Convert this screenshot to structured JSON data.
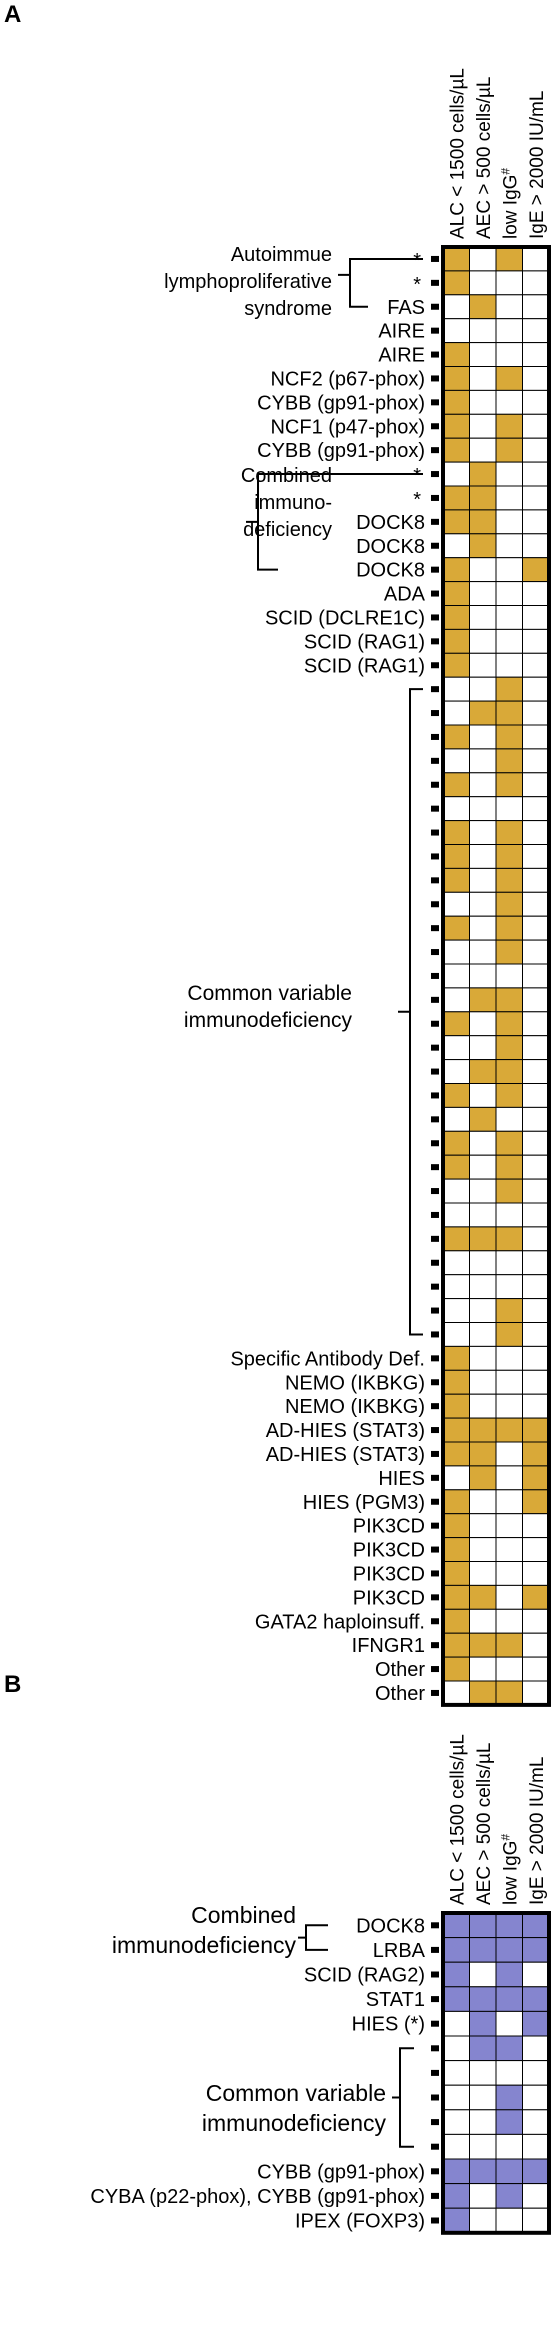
{
  "panel_a": {
    "letter": "A",
    "fill_color": "#D9A938",
    "columns": [
      "ALC < 1500 cells/µL",
      "AEC > 500 cells/µL",
      "low IgG#",
      "IgE > 2000 IU/mL"
    ],
    "rows": [
      {
        "label": "*",
        "cells": [
          1,
          0,
          1,
          0
        ]
      },
      {
        "label": "*",
        "cells": [
          1,
          0,
          0,
          0
        ]
      },
      {
        "label": "FAS",
        "cells": [
          0,
          1,
          0,
          0
        ]
      },
      {
        "label": "AIRE",
        "cells": [
          0,
          0,
          0,
          0
        ]
      },
      {
        "label": "AIRE",
        "cells": [
          1,
          0,
          0,
          0
        ]
      },
      {
        "label": "NCF2 (p67-phox)",
        "cells": [
          1,
          0,
          1,
          0
        ]
      },
      {
        "label": "CYBB (gp91-phox)",
        "cells": [
          1,
          0,
          0,
          0
        ]
      },
      {
        "label": "NCF1 (p47-phox)",
        "cells": [
          1,
          0,
          1,
          0
        ]
      },
      {
        "label": "CYBB (gp91-phox)",
        "cells": [
          1,
          0,
          1,
          0
        ]
      },
      {
        "label": "*",
        "cells": [
          0,
          1,
          0,
          0
        ]
      },
      {
        "label": "*",
        "cells": [
          1,
          1,
          0,
          0
        ]
      },
      {
        "label": "DOCK8",
        "cells": [
          1,
          1,
          0,
          0
        ]
      },
      {
        "label": "DOCK8",
        "cells": [
          0,
          1,
          0,
          0
        ]
      },
      {
        "label": "DOCK8",
        "cells": [
          1,
          0,
          0,
          1
        ]
      },
      {
        "label": "ADA",
        "cells": [
          1,
          0,
          0,
          0
        ]
      },
      {
        "label": "SCID (DCLRE1C)",
        "cells": [
          1,
          0,
          0,
          0
        ]
      },
      {
        "label": "SCID (RAG1)",
        "cells": [
          1,
          0,
          0,
          0
        ]
      },
      {
        "label": "SCID (RAG1)",
        "cells": [
          1,
          0,
          0,
          0
        ]
      },
      {
        "label": "",
        "cells": [
          0,
          0,
          1,
          0
        ]
      },
      {
        "label": "",
        "cells": [
          0,
          1,
          1,
          0
        ]
      },
      {
        "label": "",
        "cells": [
          1,
          0,
          1,
          0
        ]
      },
      {
        "label": "",
        "cells": [
          0,
          0,
          1,
          0
        ]
      },
      {
        "label": "",
        "cells": [
          1,
          0,
          1,
          0
        ]
      },
      {
        "label": "",
        "cells": [
          0,
          0,
          0,
          0
        ]
      },
      {
        "label": "",
        "cells": [
          1,
          0,
          1,
          0
        ]
      },
      {
        "label": "",
        "cells": [
          1,
          0,
          1,
          0
        ]
      },
      {
        "label": "",
        "cells": [
          1,
          0,
          1,
          0
        ]
      },
      {
        "label": "",
        "cells": [
          0,
          0,
          1,
          0
        ]
      },
      {
        "label": "",
        "cells": [
          1,
          0,
          1,
          0
        ]
      },
      {
        "label": "",
        "cells": [
          0,
          0,
          1,
          0
        ]
      },
      {
        "label": "",
        "cells": [
          0,
          0,
          0,
          0
        ]
      },
      {
        "label": "",
        "cells": [
          0,
          1,
          1,
          0
        ]
      },
      {
        "label": "",
        "cells": [
          1,
          0,
          1,
          0
        ]
      },
      {
        "label": "",
        "cells": [
          0,
          0,
          1,
          0
        ]
      },
      {
        "label": "",
        "cells": [
          0,
          1,
          1,
          0
        ]
      },
      {
        "label": "",
        "cells": [
          1,
          0,
          1,
          0
        ]
      },
      {
        "label": "",
        "cells": [
          0,
          1,
          0,
          0
        ]
      },
      {
        "label": "",
        "cells": [
          1,
          0,
          1,
          0
        ]
      },
      {
        "label": "",
        "cells": [
          1,
          0,
          1,
          0
        ]
      },
      {
        "label": "",
        "cells": [
          0,
          0,
          1,
          0
        ]
      },
      {
        "label": "",
        "cells": [
          0,
          0,
          0,
          0
        ]
      },
      {
        "label": "",
        "cells": [
          1,
          1,
          1,
          0
        ]
      },
      {
        "label": "",
        "cells": [
          0,
          0,
          0,
          0
        ]
      },
      {
        "label": "",
        "cells": [
          0,
          0,
          0,
          0
        ]
      },
      {
        "label": "",
        "cells": [
          0,
          0,
          1,
          0
        ]
      },
      {
        "label": "",
        "cells": [
          0,
          0,
          1,
          0
        ]
      },
      {
        "label": "Specific Antibody Def.",
        "cells": [
          1,
          0,
          0,
          0
        ]
      },
      {
        "label": "NEMO (IKBKG)",
        "cells": [
          1,
          0,
          0,
          0
        ]
      },
      {
        "label": "NEMO (IKBKG)",
        "cells": [
          1,
          0,
          0,
          0
        ]
      },
      {
        "label": "AD-HIES (STAT3)",
        "cells": [
          1,
          1,
          1,
          1
        ]
      },
      {
        "label": "AD-HIES (STAT3)",
        "cells": [
          1,
          1,
          0,
          1
        ]
      },
      {
        "label": "HIES",
        "cells": [
          0,
          1,
          0,
          1
        ]
      },
      {
        "label": "HIES (PGM3)",
        "cells": [
          1,
          0,
          0,
          1
        ]
      },
      {
        "label": "PIK3CD",
        "cells": [
          1,
          0,
          0,
          0
        ]
      },
      {
        "label": "PIK3CD",
        "cells": [
          1,
          0,
          0,
          0
        ]
      },
      {
        "label": "PIK3CD",
        "cells": [
          1,
          0,
          0,
          0
        ]
      },
      {
        "label": "PIK3CD",
        "cells": [
          1,
          1,
          0,
          1
        ]
      },
      {
        "label": "GATA2 haploinsuff.",
        "cells": [
          1,
          0,
          0,
          0
        ]
      },
      {
        "label": "IFNGR1",
        "cells": [
          1,
          1,
          1,
          0
        ]
      },
      {
        "label": "Other",
        "cells": [
          1,
          0,
          0,
          0
        ]
      },
      {
        "label": "Other",
        "cells": [
          0,
          1,
          1,
          0
        ]
      }
    ],
    "groups": [
      {
        "lines": [
          "Autoimmue",
          "lymphoproliferative",
          "syndrome"
        ]
      },
      {
        "lines": [
          "Combined",
          "immuno-",
          "deficiency"
        ]
      },
      {
        "lines": [
          "Common variable",
          "immunodeficiency"
        ]
      }
    ]
  },
  "panel_b": {
    "letter": "B",
    "fill_color": "#8585CF",
    "columns": [
      "ALC < 1500 cells/µL",
      "AEC > 500 cells/µL",
      "low IgG#",
      "IgE > 2000 IU/mL"
    ],
    "rows": [
      {
        "label": "DOCK8",
        "cells": [
          1,
          1,
          1,
          1
        ]
      },
      {
        "label": "LRBA",
        "cells": [
          1,
          1,
          1,
          1
        ]
      },
      {
        "label": "SCID (RAG2)",
        "cells": [
          1,
          0,
          1,
          0
        ]
      },
      {
        "label": "STAT1",
        "cells": [
          1,
          1,
          1,
          1
        ]
      },
      {
        "label": "HIES (*)",
        "cells": [
          0,
          1,
          0,
          1
        ]
      },
      {
        "label": "",
        "cells": [
          0,
          1,
          1,
          0
        ]
      },
      {
        "label": "",
        "cells": [
          0,
          0,
          0,
          0
        ]
      },
      {
        "label": "",
        "cells": [
          0,
          0,
          1,
          0
        ]
      },
      {
        "label": "",
        "cells": [
          0,
          0,
          1,
          0
        ]
      },
      {
        "label": "",
        "cells": [
          0,
          0,
          0,
          0
        ]
      },
      {
        "label": "CYBB (gp91-phox)",
        "cells": [
          1,
          1,
          1,
          1
        ]
      },
      {
        "label": "CYBA (p22-phox), CYBB (gp91-phox)",
        "cells": [
          1,
          0,
          1,
          0
        ]
      },
      {
        "label": "IPEX (FOXP3)",
        "cells": [
          1,
          0,
          0,
          0
        ]
      }
    ],
    "groups": [
      {
        "lines": [
          "Combined",
          "immunodeficiency"
        ]
      },
      {
        "lines": [
          "Common variable",
          "immunodeficiency"
        ]
      }
    ]
  }
}
